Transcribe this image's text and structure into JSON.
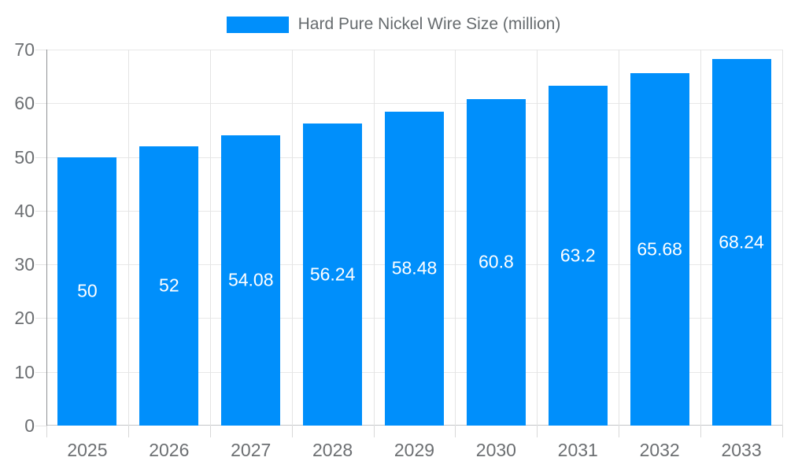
{
  "legend": {
    "swatch_icon": "legend-swatch"
  },
  "chart_data": {
    "type": "bar",
    "title": "",
    "series_name": "Hard Pure Nickel Wire Size (million)",
    "categories": [
      "2025",
      "2026",
      "2027",
      "2028",
      "2029",
      "2030",
      "2031",
      "2032",
      "2033"
    ],
    "values": [
      50,
      52,
      54.08,
      56.24,
      58.48,
      60.8,
      63.2,
      65.68,
      68.24
    ],
    "bar_labels": [
      "50",
      "52",
      "54.08",
      "56.24",
      "58.48",
      "60.8",
      "63.2",
      "65.68",
      "68.24"
    ],
    "xlabel": "",
    "ylabel": "",
    "ylim": [
      0,
      70
    ],
    "ytick_step": 10,
    "ytick_labels": [
      "0",
      "10",
      "20",
      "30",
      "40",
      "50",
      "60",
      "70"
    ],
    "grid": true,
    "legend_position": "top"
  },
  "colors": {
    "bar": "#008FFB",
    "bar_value_label": "#ffffff",
    "axis_label": "#6c6f72",
    "legend_label": "#666b6e",
    "gridline": "#e8e8e8",
    "y_axis_line": "#8f9194",
    "x_axis_line": "#c4c6c8"
  }
}
